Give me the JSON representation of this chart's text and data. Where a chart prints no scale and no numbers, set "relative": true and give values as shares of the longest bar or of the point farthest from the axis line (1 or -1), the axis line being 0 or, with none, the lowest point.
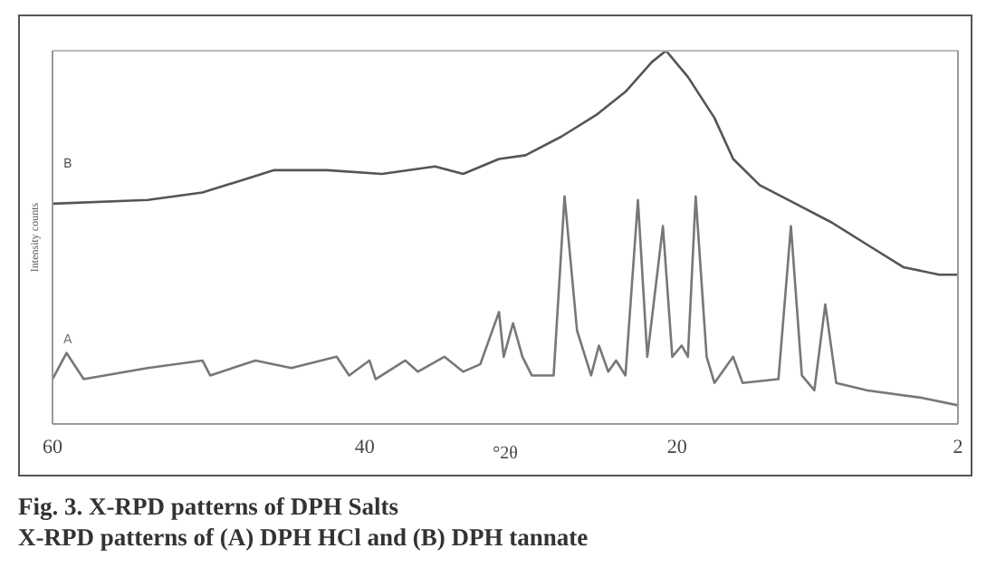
{
  "chart_data": {
    "type": "line",
    "title": "Fig. 3. X-RPD patterns of DPH Salts",
    "subtitle": "X-RPD patterns of (A) DPH HCl and (B) DPH tannate",
    "xlabel": "°2θ",
    "ylabel": "Intensity counts",
    "relative": true,
    "xlim": [
      60,
      2
    ],
    "xticks": [
      60,
      40,
      20,
      2
    ],
    "marker": "none",
    "line_style": "solid",
    "series": [
      {
        "name": "B",
        "color": "#555555",
        "x": [
          60,
          53.9,
          50.4,
          48.1,
          45.8,
          42.4,
          38.9,
          35.5,
          33.7,
          31.4,
          29.7,
          27.4,
          25.1,
          23.3,
          21.6,
          20.7,
          19.3,
          17.6,
          16.4,
          14.7,
          12.4,
          10.1,
          7.8,
          5.5,
          3.2,
          2
        ],
        "values": [
          0.59,
          0.6,
          0.62,
          0.65,
          0.68,
          0.68,
          0.67,
          0.69,
          0.67,
          0.71,
          0.72,
          0.77,
          0.83,
          0.89,
          0.97,
          1,
          0.93,
          0.82,
          0.71,
          0.64,
          0.59,
          0.54,
          0.48,
          0.42,
          0.4,
          0.4
        ]
      },
      {
        "name": "A",
        "color": "#777777",
        "x": [
          60,
          59.1,
          58,
          53.9,
          50.4,
          49.9,
          47,
          44.7,
          41.8,
          41,
          39.7,
          39.3,
          37.4,
          36.6,
          34.9,
          33.7,
          32.6,
          31.4,
          31.1,
          30.5,
          29.9,
          29.3,
          27.9,
          27.2,
          26.4,
          25.5,
          25,
          24.4,
          23.9,
          23.3,
          22.5,
          21.9,
          20.9,
          20.3,
          19.7,
          19.3,
          18.8,
          18.1,
          17.6,
          16.4,
          15.8,
          13.5,
          12.7,
          12,
          11.2,
          10.5,
          9.8,
          7.8,
          4.3,
          2
        ],
        "values": [
          0.12,
          0.19,
          0.12,
          0.15,
          0.17,
          0.13,
          0.17,
          0.15,
          0.18,
          0.13,
          0.17,
          0.12,
          0.17,
          0.14,
          0.18,
          0.14,
          0.16,
          0.3,
          0.18,
          0.27,
          0.18,
          0.13,
          0.13,
          0.61,
          0.25,
          0.13,
          0.21,
          0.14,
          0.17,
          0.13,
          0.6,
          0.18,
          0.53,
          0.18,
          0.21,
          0.18,
          0.61,
          0.18,
          0.11,
          0.18,
          0.11,
          0.12,
          0.53,
          0.13,
          0.09,
          0.32,
          0.11,
          0.09,
          0.07,
          0.05
        ]
      }
    ]
  }
}
